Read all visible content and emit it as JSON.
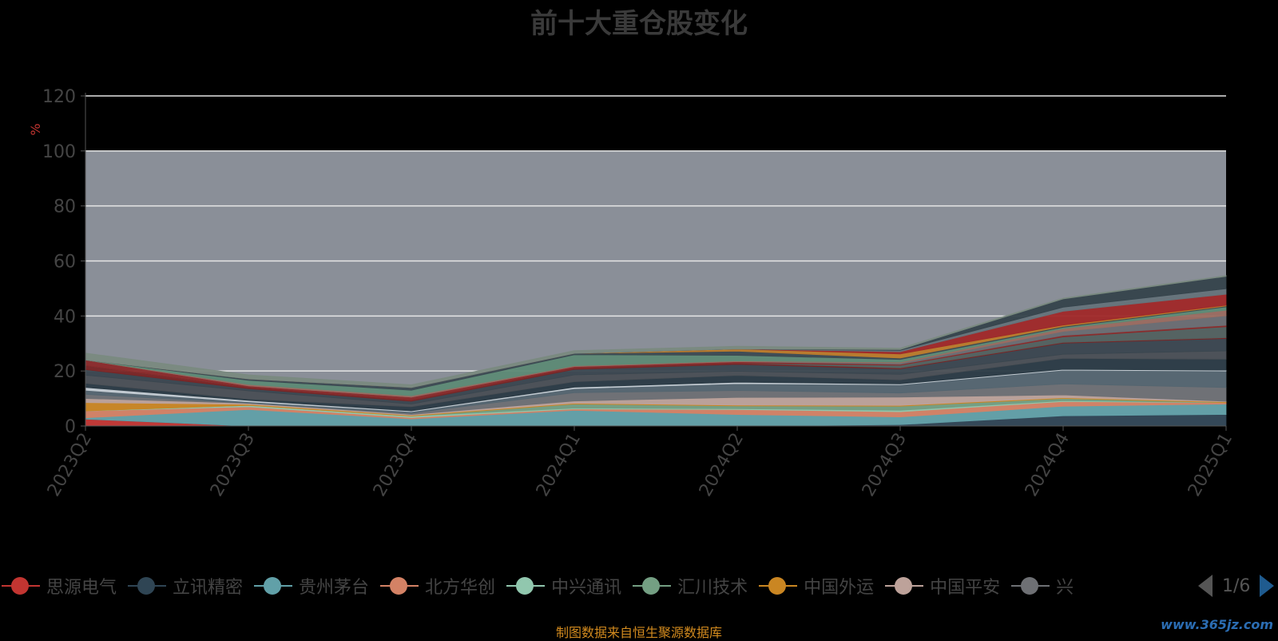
{
  "chart_data": {
    "type": "area",
    "title": "前十大重仓股变化",
    "ylabel": "%",
    "ylim": [
      0,
      120
    ],
    "yticks": [
      0,
      20,
      40,
      60,
      80,
      100,
      120
    ],
    "x": [
      "2023Q2",
      "2023Q3",
      "2023Q4",
      "2024Q1",
      "2024Q2",
      "2024Q3",
      "2024Q4",
      "2025Q1"
    ],
    "background_band": {
      "from": 0,
      "to": 100,
      "color": "#8a8f98"
    },
    "stacked": true,
    "series": [
      {
        "name": "思源电气",
        "color": "#c23531",
        "values": [
          2.5,
          0,
          0,
          0,
          0,
          0,
          0,
          0
        ]
      },
      {
        "name": "立讯精密",
        "color": "#2f4554",
        "values": [
          0,
          0,
          0,
          0,
          0,
          0.5,
          3.7,
          4.2
        ]
      },
      {
        "name": "贵州茅台",
        "color": "#61a0a8",
        "values": [
          0.5,
          6.0,
          2.6,
          5.7,
          4.2,
          2.8,
          3.5,
          3.8
        ]
      },
      {
        "name": "北方华创",
        "color": "#d48265",
        "values": [
          2.5,
          1.0,
          0.5,
          0.5,
          1.8,
          1.9,
          1.7,
          0.5
        ]
      },
      {
        "name": "中兴通讯",
        "color": "#91c7ae",
        "values": [
          0,
          0.5,
          0.5,
          0.3,
          0.3,
          0.5,
          0.3,
          0
        ]
      },
      {
        "name": "汇川技术",
        "color": "#749f83",
        "values": [
          0,
          0,
          0,
          1.5,
          1.0,
          1.5,
          0.8,
          0
        ]
      },
      {
        "name": "中国外运",
        "color": "#ca8622",
        "values": [
          3.0,
          0.4,
          0.3,
          0.3,
          0.3,
          0.3,
          0.3,
          0.3
        ]
      },
      {
        "name": "中国平安",
        "color": "#bda29a",
        "values": [
          1.5,
          0.4,
          0.3,
          0.8,
          2.8,
          3.0,
          1.0,
          0.2
        ]
      },
      {
        "name": "兴业银行",
        "color": "#6e7074",
        "values": [
          1.5,
          0,
          0.5,
          3.0,
          2.5,
          1.5,
          4.0,
          5.0
        ]
      },
      {
        "name": "",
        "color": "#546570",
        "values": [
          1.5,
          0.5,
          0.5,
          1.5,
          2.5,
          3.0,
          5.0,
          6.0
        ]
      },
      {
        "name": "",
        "color": "#c4ccd3",
        "values": [
          1.0,
          0.5,
          0.3,
          0.5,
          0.5,
          0.3,
          0.3,
          0.3
        ]
      },
      {
        "name": "",
        "color": "#2a3a44",
        "values": [
          1.5,
          0.5,
          1.5,
          2.0,
          2.5,
          1.5,
          4.0,
          4.0
        ]
      },
      {
        "name": "",
        "color": "#4a4f55",
        "values": [
          3.0,
          3.0,
          1.0,
          2.5,
          1.5,
          2.0,
          1.5,
          3.0
        ]
      },
      {
        "name": "",
        "color": "#3a464f",
        "values": [
          2.0,
          0.8,
          1.0,
          2.0,
          2.5,
          2.0,
          4.0,
          4.5
        ]
      },
      {
        "name": "",
        "color": "#7a2424",
        "values": [
          1.5,
          0.5,
          0.5,
          0.5,
          0.5,
          0.3,
          0.3,
          0.3
        ]
      },
      {
        "name": "",
        "color": "#52615f",
        "values": [
          0,
          0,
          0,
          0,
          0,
          1.0,
          2.0,
          4.0
        ]
      },
      {
        "name": "",
        "color": "#8b2a2a",
        "values": [
          2.0,
          0.5,
          1.0,
          0.5,
          0.5,
          0.3,
          0.5,
          0.5
        ]
      },
      {
        "name": "",
        "color": "#6a6d72",
        "values": [
          0,
          0,
          0,
          0,
          0,
          0.5,
          1.5,
          3.5
        ]
      },
      {
        "name": "",
        "color": "#9a6b60",
        "values": [
          0,
          0.5,
          0.5,
          0.3,
          0.3,
          0.3,
          1.0,
          2.0
        ]
      },
      {
        "name": "",
        "color": "#5d8a75",
        "values": [
          0,
          1.5,
          2.0,
          4.0,
          2.0,
          1.0,
          0.5,
          1.2
        ]
      },
      {
        "name": "",
        "color": "#3c4a52",
        "values": [
          0,
          0.5,
          1.0,
          0.5,
          1.5,
          0.5,
          0.3,
          0.3
        ]
      },
      {
        "name": "",
        "color": "#ba7a2a",
        "values": [
          0,
          0,
          0,
          0,
          0.8,
          1.5,
          0.5,
          0.3
        ]
      },
      {
        "name": "",
        "color": "#a02828",
        "values": [
          0,
          0,
          0,
          0,
          0,
          0.8,
          5.0,
          4.0
        ]
      },
      {
        "name": "",
        "color": "#65737a",
        "values": [
          0,
          0,
          0,
          0,
          0,
          0.5,
          1.5,
          2.0
        ]
      },
      {
        "name": "",
        "color": "#35434b",
        "values": [
          0,
          0,
          0,
          0,
          0,
          0.3,
          3.0,
          4.5
        ]
      },
      {
        "name": "",
        "color": "#7a8a80",
        "values": [
          2.5,
          1.5,
          1.0,
          1.0,
          1.0,
          0.5,
          0.3,
          0.3
        ]
      }
    ]
  },
  "legend": {
    "items": [
      {
        "label": "思源电气",
        "color": "#c23531"
      },
      {
        "label": "立讯精密",
        "color": "#2f4554"
      },
      {
        "label": "贵州茅台",
        "color": "#61a0a8"
      },
      {
        "label": "北方华创",
        "color": "#d48265"
      },
      {
        "label": "中兴通讯",
        "color": "#91c7ae"
      },
      {
        "label": "汇川技术",
        "color": "#749f83"
      },
      {
        "label": "中国外运",
        "color": "#ca8622"
      },
      {
        "label": "中国平安",
        "color": "#bda29a"
      },
      {
        "label": "兴",
        "color": "#6e7074"
      }
    ],
    "page": "1/6"
  },
  "footer_note": "制图数据来自恒生聚源数据库",
  "watermark": "www.365jz.com"
}
